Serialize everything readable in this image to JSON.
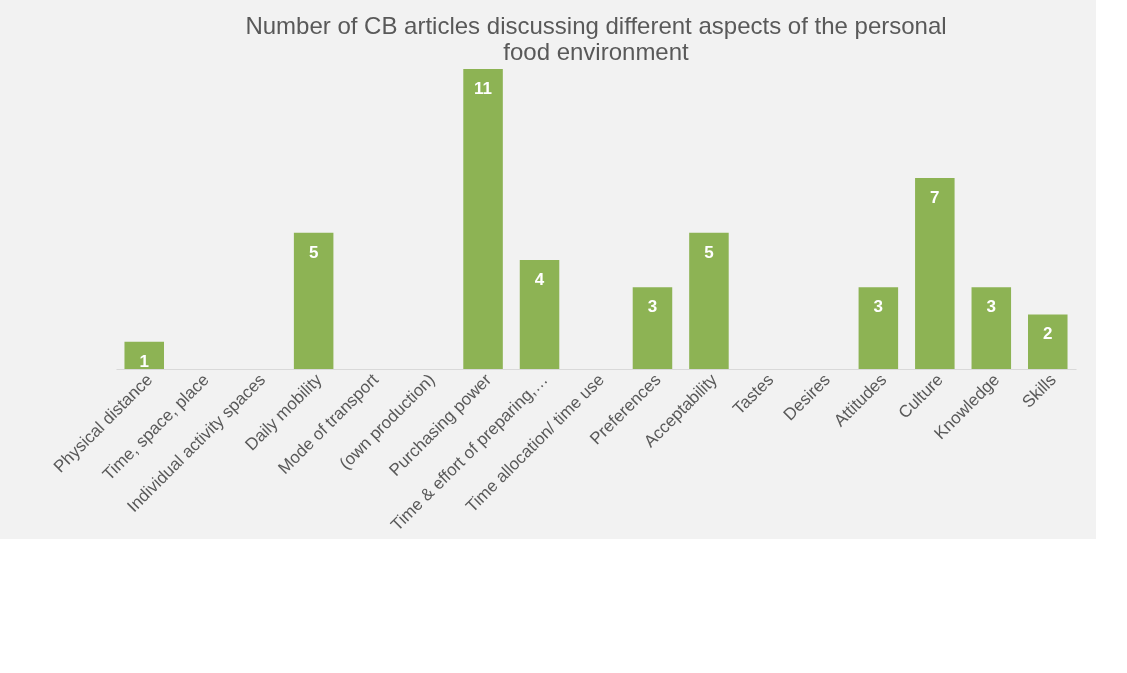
{
  "chart_data": {
    "type": "bar",
    "title": "Number of CB articles discussing different aspects of the personal food environment",
    "categories": [
      "Physical distance",
      "Time, space, place",
      "Individual activity spaces",
      "Daily mobility",
      "Mode of transport",
      "(own production)",
      "Purchasing power",
      "Time & effort of preparing,…",
      "Time allocation/ time use",
      "Preferences",
      "Acceptability",
      "Tastes",
      "Desires",
      "Attitudes",
      "Culture",
      "Knowledge",
      "Skills"
    ],
    "values": [
      1,
      0,
      0,
      5,
      0,
      0,
      11,
      4,
      0,
      3,
      5,
      0,
      0,
      3,
      7,
      3,
      2
    ],
    "value_labels": [
      "1",
      null,
      null,
      "5",
      null,
      null,
      "11",
      "4",
      null,
      "3",
      "5",
      null,
      null,
      "3",
      "7",
      "3",
      "2"
    ],
    "color": "#8db354",
    "grid": false
  }
}
